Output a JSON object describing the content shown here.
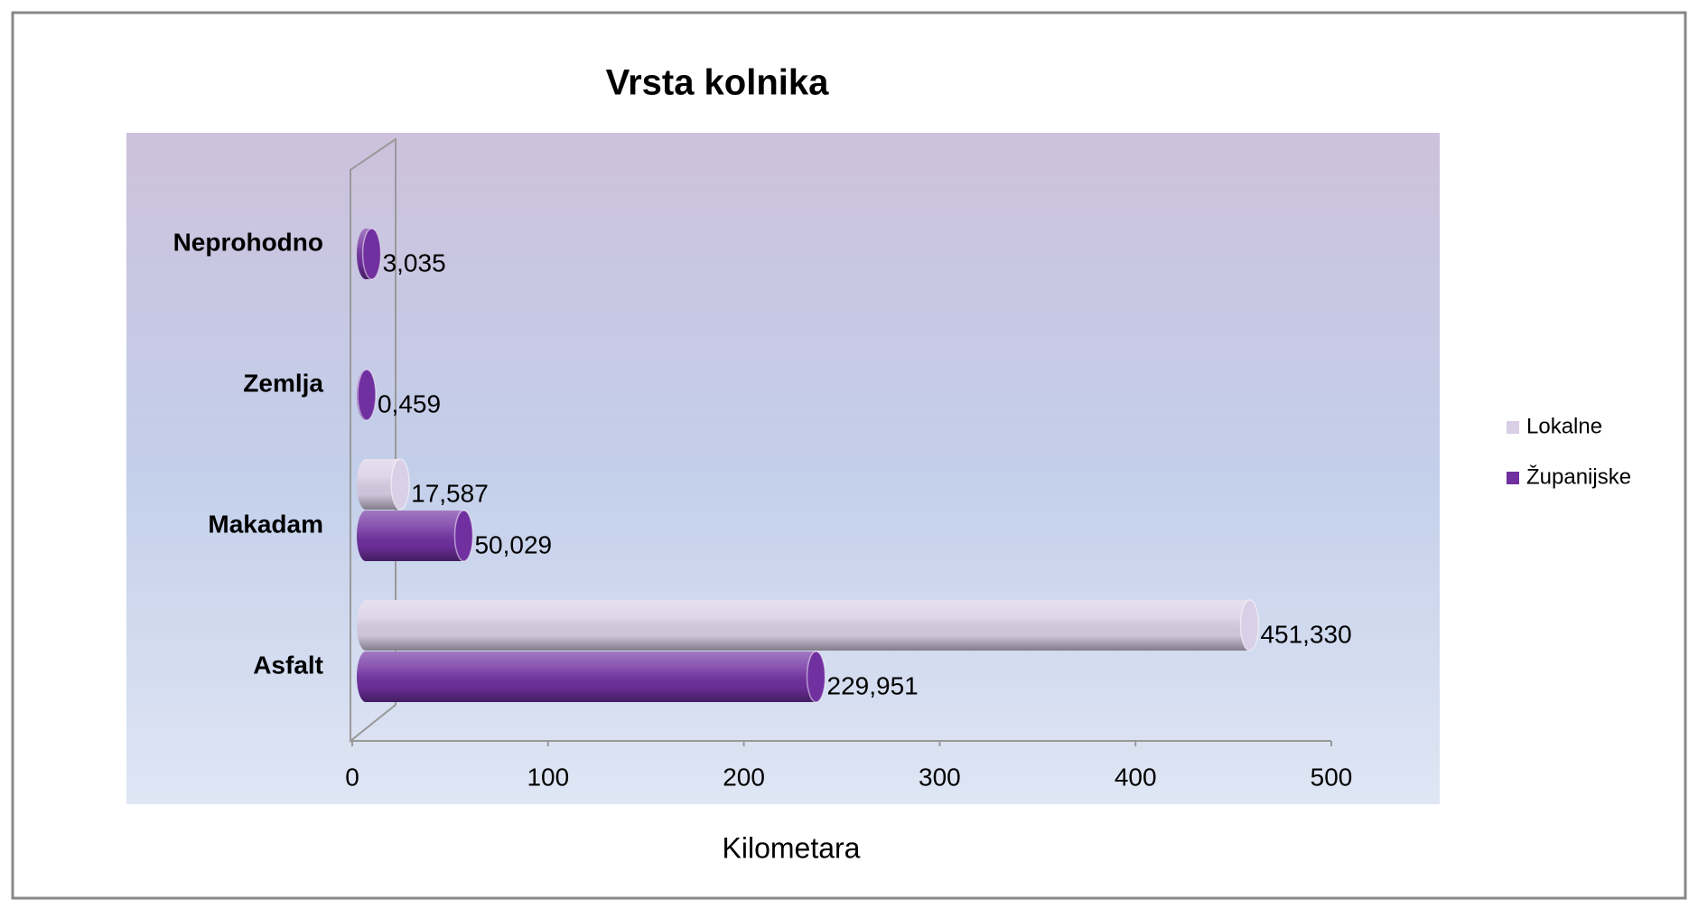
{
  "chart_data": {
    "type": "bar",
    "orientation": "horizontal",
    "three_d": true,
    "title": "Vrsta kolnika",
    "x_label": "Kilometara",
    "categories": [
      "Asfalt",
      "Makadam",
      "Zemlja",
      "Neprohodno"
    ],
    "series": [
      {
        "name": "Lokalne",
        "color": "#d9cfe6",
        "values": [
          451.33,
          17.587,
          null,
          null
        ],
        "value_labels": [
          "451,330",
          "17,587",
          null,
          null
        ]
      },
      {
        "name": "Županijske",
        "color": "#7030a0",
        "values": [
          229.951,
          50.029,
          0.459,
          3.035
        ],
        "value_labels": [
          "229,951",
          "50,029",
          "0,459",
          "3,035"
        ]
      }
    ],
    "xlim": [
      0,
      500
    ],
    "xticks": [
      0,
      100,
      200,
      300,
      400,
      500
    ],
    "legend": "right"
  }
}
